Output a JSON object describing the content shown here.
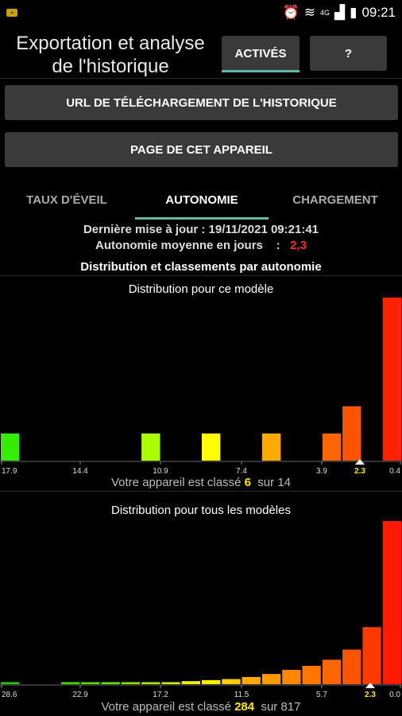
{
  "status_bar": {
    "time": "09:21",
    "network": "4G"
  },
  "header": {
    "title_line1": "Exportation et analyse",
    "title_line2": "de l'historique",
    "actives_label": "ACTIVÉS",
    "help_label": "?"
  },
  "buttons": {
    "download_url": "URL DE TÉLÉCHARGEMENT DE L'HISTORIQUE",
    "device_page": "PAGE DE CET APPAREIL"
  },
  "tabs": [
    {
      "label": "TAUX D'ÉVEIL"
    },
    {
      "label": "AUTONOMIE"
    },
    {
      "label": "CHARGEMENT"
    }
  ],
  "summary": {
    "last_update_label": "Dernière mise à jour :",
    "last_update_value": "19/11/2021 09:21:41",
    "avg_label": "Autonomie moyenne en jours",
    "avg_sep": ":",
    "avg_value": "2,3",
    "section_title": "Distribution et classements par autonomie"
  },
  "chart_data": [
    {
      "type": "bar",
      "title": "Distribution pour ce modèle",
      "tick_labels": [
        "17.9",
        "14.4",
        "10.9",
        "7.4",
        "3.9",
        "2.3",
        "0.4"
      ],
      "highlight_tick": "2.3",
      "bars": [
        {
          "bin": 0,
          "value": 1,
          "color": "#33ee00"
        },
        {
          "bin": 7,
          "value": 1,
          "color": "#aaff00"
        },
        {
          "bin": 10,
          "value": 1,
          "color": "#ffff00"
        },
        {
          "bin": 13,
          "value": 1,
          "color": "#ffaa00"
        },
        {
          "bin": 16,
          "value": 1,
          "color": "#ff6600"
        },
        {
          "bin": 17,
          "value": 2,
          "color": "#ff5500"
        },
        {
          "bin": 19,
          "value": 6,
          "color": "#ff2200"
        }
      ],
      "ylim": [
        0,
        6
      ],
      "rank_label": "Votre appareil est classé",
      "rank_value": "6",
      "rank_sep": "sur",
      "rank_total": "14"
    },
    {
      "type": "bar",
      "title": "Distribution pour tous les modèles",
      "tick_labels": [
        "28.6",
        "22.9",
        "17.2",
        "11.5",
        "5.7",
        "2.3",
        "0.0"
      ],
      "highlight_tick": "2.3",
      "bars": [
        {
          "bin": 0,
          "value": 1,
          "color": "#22cc00"
        },
        {
          "bin": 3,
          "value": 1,
          "color": "#44dd00"
        },
        {
          "bin": 4,
          "value": 1,
          "color": "#55dd00"
        },
        {
          "bin": 5,
          "value": 1,
          "color": "#66e000"
        },
        {
          "bin": 6,
          "value": 1,
          "color": "#88e000"
        },
        {
          "bin": 7,
          "value": 1,
          "color": "#aae800"
        },
        {
          "bin": 8,
          "value": 1,
          "color": "#ccee00"
        },
        {
          "bin": 9,
          "value": 1.5,
          "color": "#eeee00"
        },
        {
          "bin": 10,
          "value": 2,
          "color": "#ffee00"
        },
        {
          "bin": 11,
          "value": 2.5,
          "color": "#ffcc00"
        },
        {
          "bin": 12,
          "value": 3.5,
          "color": "#ffaa00"
        },
        {
          "bin": 13,
          "value": 5,
          "color": "#ff9900"
        },
        {
          "bin": 14,
          "value": 7,
          "color": "#ff8800"
        },
        {
          "bin": 15,
          "value": 9,
          "color": "#ff7700"
        },
        {
          "bin": 16,
          "value": 12,
          "color": "#ff6600"
        },
        {
          "bin": 17,
          "value": 17,
          "color": "#ff5500"
        },
        {
          "bin": 18,
          "value": 28,
          "color": "#ff3a00"
        },
        {
          "bin": 19,
          "value": 80,
          "color": "#ff1a00"
        }
      ],
      "ylim": [
        0,
        80
      ],
      "rank_label": "Votre appareil est classé",
      "rank_value": "284",
      "rank_sep": "sur",
      "rank_total": "817"
    }
  ]
}
